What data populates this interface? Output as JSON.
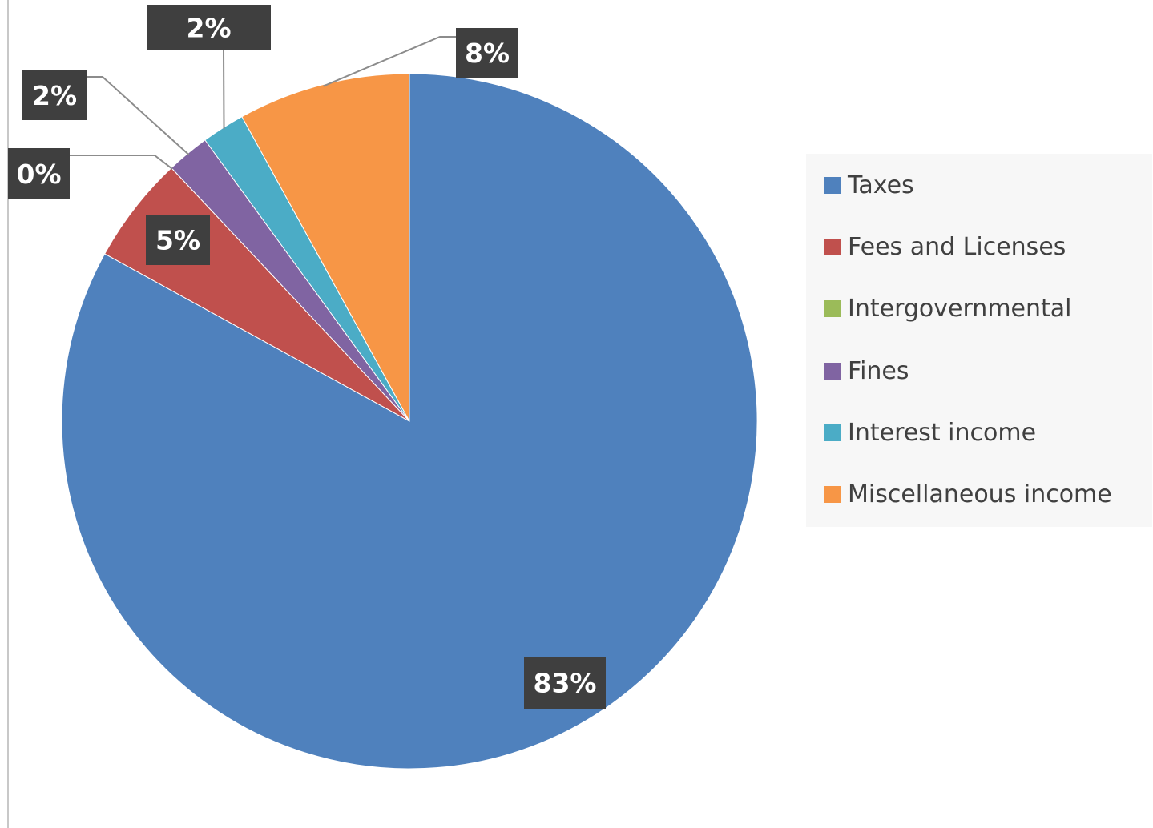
{
  "chart_data": {
    "type": "pie",
    "title": "",
    "start_angle_deg": 0,
    "direction": "clockwise",
    "slices": [
      {
        "label": "Taxes",
        "value": 83,
        "display": "83%",
        "color": "#4f81bd"
      },
      {
        "label": "Fees and Licenses",
        "value": 5,
        "display": "5%",
        "color": "#c0504d"
      },
      {
        "label": "Intergovernmental",
        "value": 0,
        "display": "0%",
        "color": "#9bbb59"
      },
      {
        "label": "Fines",
        "value": 2,
        "display": "2%",
        "color": "#8064a2"
      },
      {
        "label": "Interest income",
        "value": 2,
        "display": "2%",
        "color": "#4bacc6"
      },
      {
        "label": "Miscellaneous income",
        "value": 8,
        "display": "8%",
        "color": "#f79646"
      }
    ],
    "legend_position": "right",
    "data_labels": "percentage, bold, dark boxes with leader lines"
  }
}
